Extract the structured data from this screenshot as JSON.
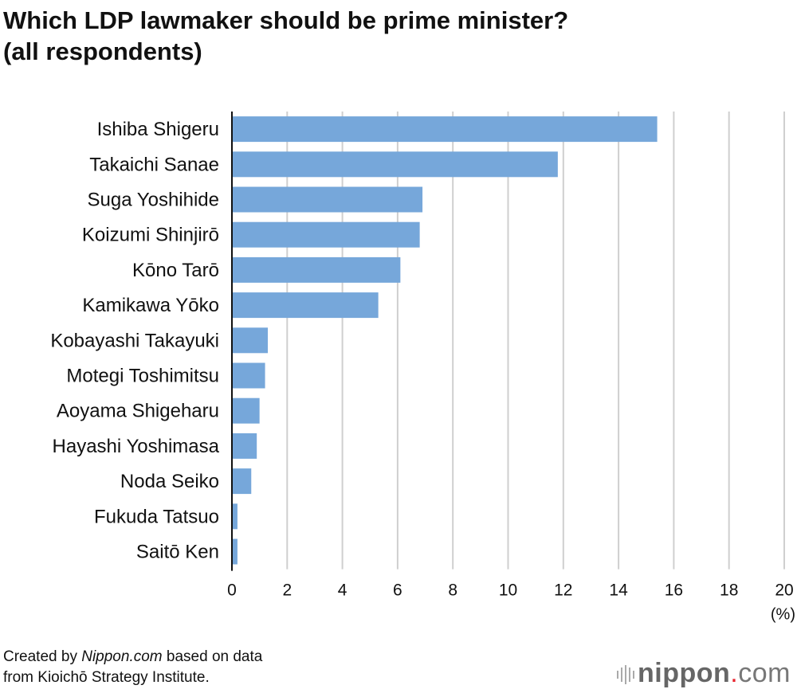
{
  "title_line1": "Which LDP lawmaker should be prime minister?",
  "title_line2": "(all respondents)",
  "footer": {
    "line1_prefix": "Created by ",
    "line1_source": "Nippon.com",
    "line1_suffix": " based on data",
    "line2": "from Kioichō Strategy Institute."
  },
  "logo": {
    "name": "nippon",
    "dot": ".",
    "suffix": "com"
  },
  "chart_data": {
    "type": "bar",
    "orientation": "horizontal",
    "title": "Which LDP lawmaker should be prime minister? (all respondents)",
    "categories": [
      "Ishiba Shigeru",
      "Takaichi Sanae",
      "Suga Yoshihide",
      "Koizumi Shinjirō",
      "Kōno Tarō",
      "Kamikawa Yōko",
      "Kobayashi Takayuki",
      "Motegi Toshimitsu",
      "Aoyama Shigeharu",
      "Hayashi Yoshimasa",
      "Noda Seiko",
      "Fukuda Tatsuo",
      "Saitō Ken"
    ],
    "values": [
      15.4,
      11.8,
      6.9,
      6.8,
      6.1,
      5.3,
      1.3,
      1.2,
      1.0,
      0.9,
      0.7,
      0.2,
      0.2
    ],
    "xlim": [
      0,
      20
    ],
    "xticks": [
      "0",
      "2",
      "4",
      "6",
      "8",
      "10",
      "12",
      "14",
      "16",
      "18",
      "20"
    ],
    "xunit": "(%)",
    "grid": true,
    "bar_color": "#76a7da"
  }
}
